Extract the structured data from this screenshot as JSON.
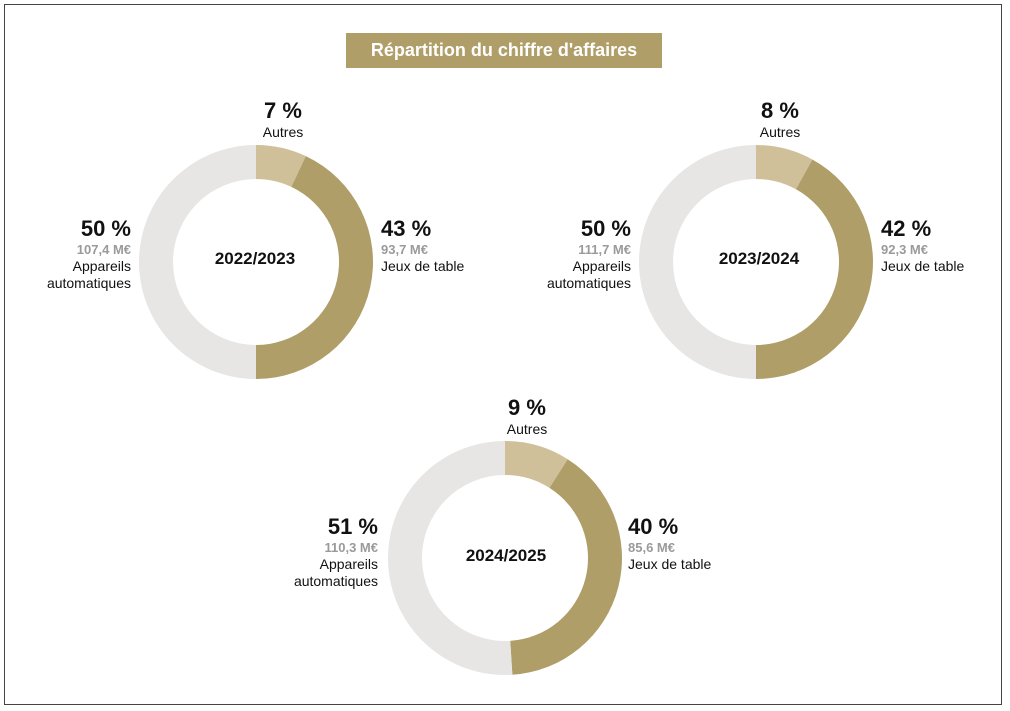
{
  "title": "Répartition du chiffre d'affaires",
  "colors": {
    "jeux_de_table": "#b09e69",
    "autres": "#cfc09a",
    "appareils_automatiques": "#e7e6e4",
    "title_background": "#b09e69"
  },
  "chart_data": [
    {
      "type": "pie",
      "donut": true,
      "center_label": "2022/2023",
      "slices": [
        {
          "category": "Autres",
          "percent_label": "7 %",
          "percent": 7,
          "value_label": ""
        },
        {
          "category": "Jeux de table",
          "percent_label": "43 %",
          "percent": 43,
          "value": 93.7,
          "value_label": "93,7 M€"
        },
        {
          "category": "Appareils automatiques",
          "category_lines": [
            "Appareils",
            "automatiques"
          ],
          "percent_label": "50 %",
          "percent": 50,
          "value": 107.4,
          "value_label": "107,4 M€"
        }
      ]
    },
    {
      "type": "pie",
      "donut": true,
      "center_label": "2023/2024",
      "slices": [
        {
          "category": "Autres",
          "percent_label": "8 %",
          "percent": 8,
          "value_label": ""
        },
        {
          "category": "Jeux de table",
          "percent_label": "42 %",
          "percent": 42,
          "value": 92.3,
          "value_label": "92,3 M€"
        },
        {
          "category": "Appareils automatiques",
          "category_lines": [
            "Appareils",
            "automatiques"
          ],
          "percent_label": "50 %",
          "percent": 50,
          "value": 111.7,
          "value_label": "111,7 M€"
        }
      ]
    },
    {
      "type": "pie",
      "donut": true,
      "center_label": "2024/2025",
      "slices": [
        {
          "category": "Autres",
          "percent_label": "9 %",
          "percent": 9,
          "value_label": ""
        },
        {
          "category": "Jeux de table",
          "percent_label": "40 %",
          "percent": 40,
          "value": 85.6,
          "value_label": "85,6 M€"
        },
        {
          "category": "Appareils automatiques",
          "category_lines": [
            "Appareils",
            "automatiques"
          ],
          "percent_label": "51 %",
          "percent": 51,
          "value": 110.3,
          "value_label": "110,3 M€"
        }
      ]
    }
  ]
}
